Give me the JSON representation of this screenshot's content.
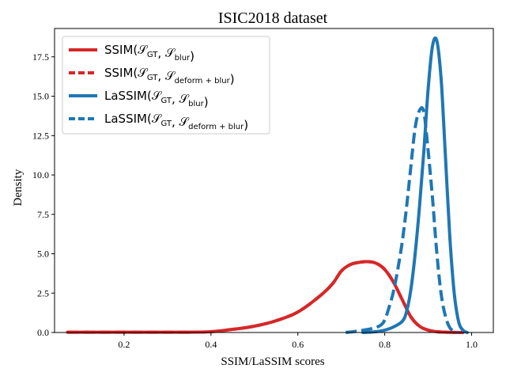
{
  "chart_data": {
    "type": "line",
    "title": "ISIC2018 dataset",
    "xlabel": "SSIM/LaSSIM scores",
    "ylabel": "Density",
    "xlim": [
      0.04,
      1.05
    ],
    "ylim": [
      0,
      19.3
    ],
    "xticks": [
      0.2,
      0.4,
      0.6,
      0.8,
      1.0
    ],
    "xtick_labels": [
      "0.2",
      "0.4",
      "0.6",
      "0.8",
      "1.0"
    ],
    "yticks": [
      0,
      2.5,
      5,
      7.5,
      10,
      12.5,
      15,
      17.5
    ],
    "ytick_labels": [
      "0.0",
      "2.5",
      "5.0",
      "7.5",
      "10.0",
      "12.5",
      "15.0",
      "17.5"
    ],
    "grid": false,
    "legend_position": "top-left",
    "series": [
      {
        "name": "SSIM(𝒮GT, 𝒮blur)",
        "legend": {
          "prefix": "SSIM(",
          "a_sym": "𝒮",
          "a_sub": "GT",
          "sep": ", ",
          "b_sym": "𝒮",
          "b_sub": "blur",
          "suffix": ")"
        },
        "color": "#d62728",
        "dash": "solid",
        "x": [
          0.07,
          0.15,
          0.25,
          0.35,
          0.4,
          0.45,
          0.5,
          0.55,
          0.6,
          0.65,
          0.68,
          0.7,
          0.72,
          0.74,
          0.76,
          0.78,
          0.8,
          0.82,
          0.84,
          0.86,
          0.88,
          0.9,
          0.92,
          0.95,
          0.98
        ],
        "y": [
          0.02,
          0.02,
          0.02,
          0.02,
          0.05,
          0.2,
          0.4,
          0.75,
          1.3,
          2.3,
          3.1,
          3.9,
          4.3,
          4.45,
          4.5,
          4.4,
          4.0,
          3.2,
          2.1,
          1.0,
          0.4,
          0.15,
          0.05,
          0.01,
          0.0
        ]
      },
      {
        "name": "SSIM(𝒮GT, 𝒮deform + blur)",
        "legend": {
          "prefix": "SSIM(",
          "a_sym": "𝒮",
          "a_sub": "GT",
          "sep": ", ",
          "b_sym": "𝒮",
          "b_sub": "deform + blur",
          "suffix": ")"
        },
        "color": "#d62728",
        "dash": "dashed",
        "x": [
          0.07,
          0.15,
          0.25,
          0.35,
          0.4,
          0.45,
          0.5,
          0.55,
          0.6,
          0.65,
          0.68,
          0.7,
          0.72,
          0.74,
          0.76,
          0.78,
          0.8,
          0.82,
          0.84,
          0.86,
          0.88,
          0.9,
          0.92,
          0.95,
          0.98
        ],
        "y": [
          0.02,
          0.02,
          0.02,
          0.02,
          0.05,
          0.2,
          0.4,
          0.75,
          1.3,
          2.3,
          3.1,
          3.9,
          4.3,
          4.45,
          4.5,
          4.4,
          4.0,
          3.2,
          2.1,
          1.0,
          0.4,
          0.15,
          0.05,
          0.01,
          0.0
        ]
      },
      {
        "name": "LaSSIM(𝒮GT, 𝒮blur)",
        "legend": {
          "prefix": "LaSSIM(",
          "a_sym": "𝒮",
          "a_sub": "GT",
          "sep": ", ",
          "b_sym": "𝒮",
          "b_sub": "blur",
          "suffix": ")"
        },
        "color": "#1f77b4",
        "dash": "solid",
        "x": [
          0.75,
          0.78,
          0.8,
          0.82,
          0.84,
          0.85,
          0.86,
          0.87,
          0.88,
          0.89,
          0.9,
          0.91,
          0.92,
          0.93,
          0.94,
          0.95,
          0.96,
          0.97,
          0.98,
          0.99
        ],
        "y": [
          0.0,
          0.05,
          0.15,
          0.35,
          0.7,
          1.3,
          2.7,
          5.0,
          8.0,
          11.5,
          15.5,
          18.2,
          18.5,
          16.0,
          11.0,
          6.0,
          2.5,
          0.7,
          0.15,
          0.0
        ]
      },
      {
        "name": "LaSSIM(𝒮GT, 𝒮deform + blur)",
        "legend": {
          "prefix": "LaSSIM(",
          "a_sym": "𝒮",
          "a_sub": "GT",
          "sep": ", ",
          "b_sym": "𝒮",
          "b_sub": "deform + blur",
          "suffix": ")"
        },
        "color": "#1f77b4",
        "dash": "dashed",
        "x": [
          0.71,
          0.74,
          0.77,
          0.79,
          0.8,
          0.81,
          0.82,
          0.83,
          0.84,
          0.85,
          0.86,
          0.87,
          0.88,
          0.89,
          0.9,
          0.91,
          0.92,
          0.93,
          0.94,
          0.95,
          0.96,
          0.97
        ],
        "y": [
          0.0,
          0.1,
          0.25,
          0.45,
          0.8,
          1.6,
          2.6,
          4.0,
          5.7,
          7.9,
          10.5,
          13.0,
          14.1,
          14.0,
          11.5,
          8.5,
          5.0,
          2.4,
          1.0,
          0.3,
          0.08,
          0.0
        ]
      }
    ]
  }
}
